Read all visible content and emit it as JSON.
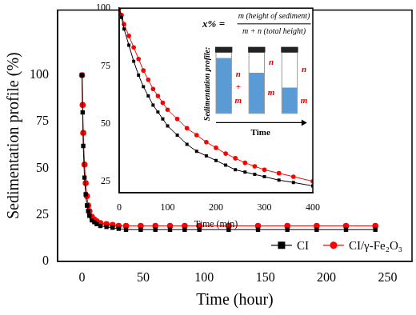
{
  "chart_data": [
    {
      "type": "line",
      "x_label": "Time (hour)",
      "y_label": "Sedimentation profile (%)",
      "x": [
        0,
        0.5,
        1,
        2,
        3,
        4,
        5,
        6,
        8,
        10,
        12,
        15,
        20,
        25,
        30,
        36,
        48,
        60,
        72,
        84,
        96,
        120,
        144,
        168,
        192,
        216,
        240
      ],
      "series": [
        {
          "name": "CI",
          "color": "#000000",
          "marker": "square",
          "values": [
            100,
            80,
            62,
            45,
            36,
            30,
            27,
            24.5,
            22,
            21,
            20,
            19,
            18.5,
            18,
            17.5,
            17,
            17,
            17,
            17,
            17,
            17,
            17,
            17,
            17,
            17,
            17,
            17
          ]
        },
        {
          "name": "CI/γ-Fe₂O₃",
          "color": "#ff0000",
          "marker": "circle",
          "values": [
            100,
            84,
            69,
            52,
            42,
            35,
            30,
            27,
            24,
            22.5,
            21.5,
            20.5,
            20,
            19.5,
            19,
            19,
            19,
            19,
            19,
            19,
            19,
            19,
            19,
            19,
            19,
            19,
            19
          ]
        }
      ],
      "xlim": [
        -20,
        270
      ],
      "xticks": [
        0,
        50,
        100,
        150,
        200,
        250
      ],
      "ylim": [
        0,
        135
      ],
      "yticks": [
        0,
        25,
        50,
        75,
        100
      ],
      "grid": false,
      "legend": "lower right"
    },
    {
      "type": "line",
      "x_label": "Time (min)",
      "x": [
        0,
        5,
        10,
        20,
        30,
        40,
        50,
        60,
        70,
        80,
        90,
        100,
        120,
        140,
        160,
        180,
        200,
        220,
        240,
        260,
        280,
        300,
        330,
        360,
        400
      ],
      "series": [
        {
          "color": "#000000",
          "marker": "square",
          "values": [
            100,
            96,
            91,
            84,
            77,
            71,
            66,
            62,
            58,
            55,
            52,
            49,
            45,
            41,
            38,
            36,
            34,
            32,
            30,
            29,
            28,
            27,
            25.5,
            24.5,
            23
          ]
        },
        {
          "color": "#ff0000",
          "marker": "circle",
          "values": [
            100,
            97,
            93,
            88,
            83,
            78,
            73,
            69,
            65,
            62,
            59,
            56,
            52,
            48,
            45,
            42,
            39.5,
            37,
            35,
            33,
            31.5,
            30,
            28.5,
            27,
            25
          ]
        }
      ],
      "xlim": [
        0,
        400
      ],
      "xticks": [
        0,
        100,
        200,
        300,
        400
      ],
      "ylim": [
        20,
        100
      ],
      "yticks": [
        25,
        50,
        75,
        100
      ],
      "grid": false,
      "annotations": {
        "formula": [
          "x% =",
          "m (height of sediment)",
          "m + n (total height)"
        ],
        "side_label": "Sedimentation profile:",
        "vial_labels": [
          [
            "n",
            "+",
            "m"
          ],
          [
            "n",
            "m"
          ],
          [
            "n",
            "m"
          ]
        ],
        "arrow_label": "Time"
      }
    }
  ]
}
